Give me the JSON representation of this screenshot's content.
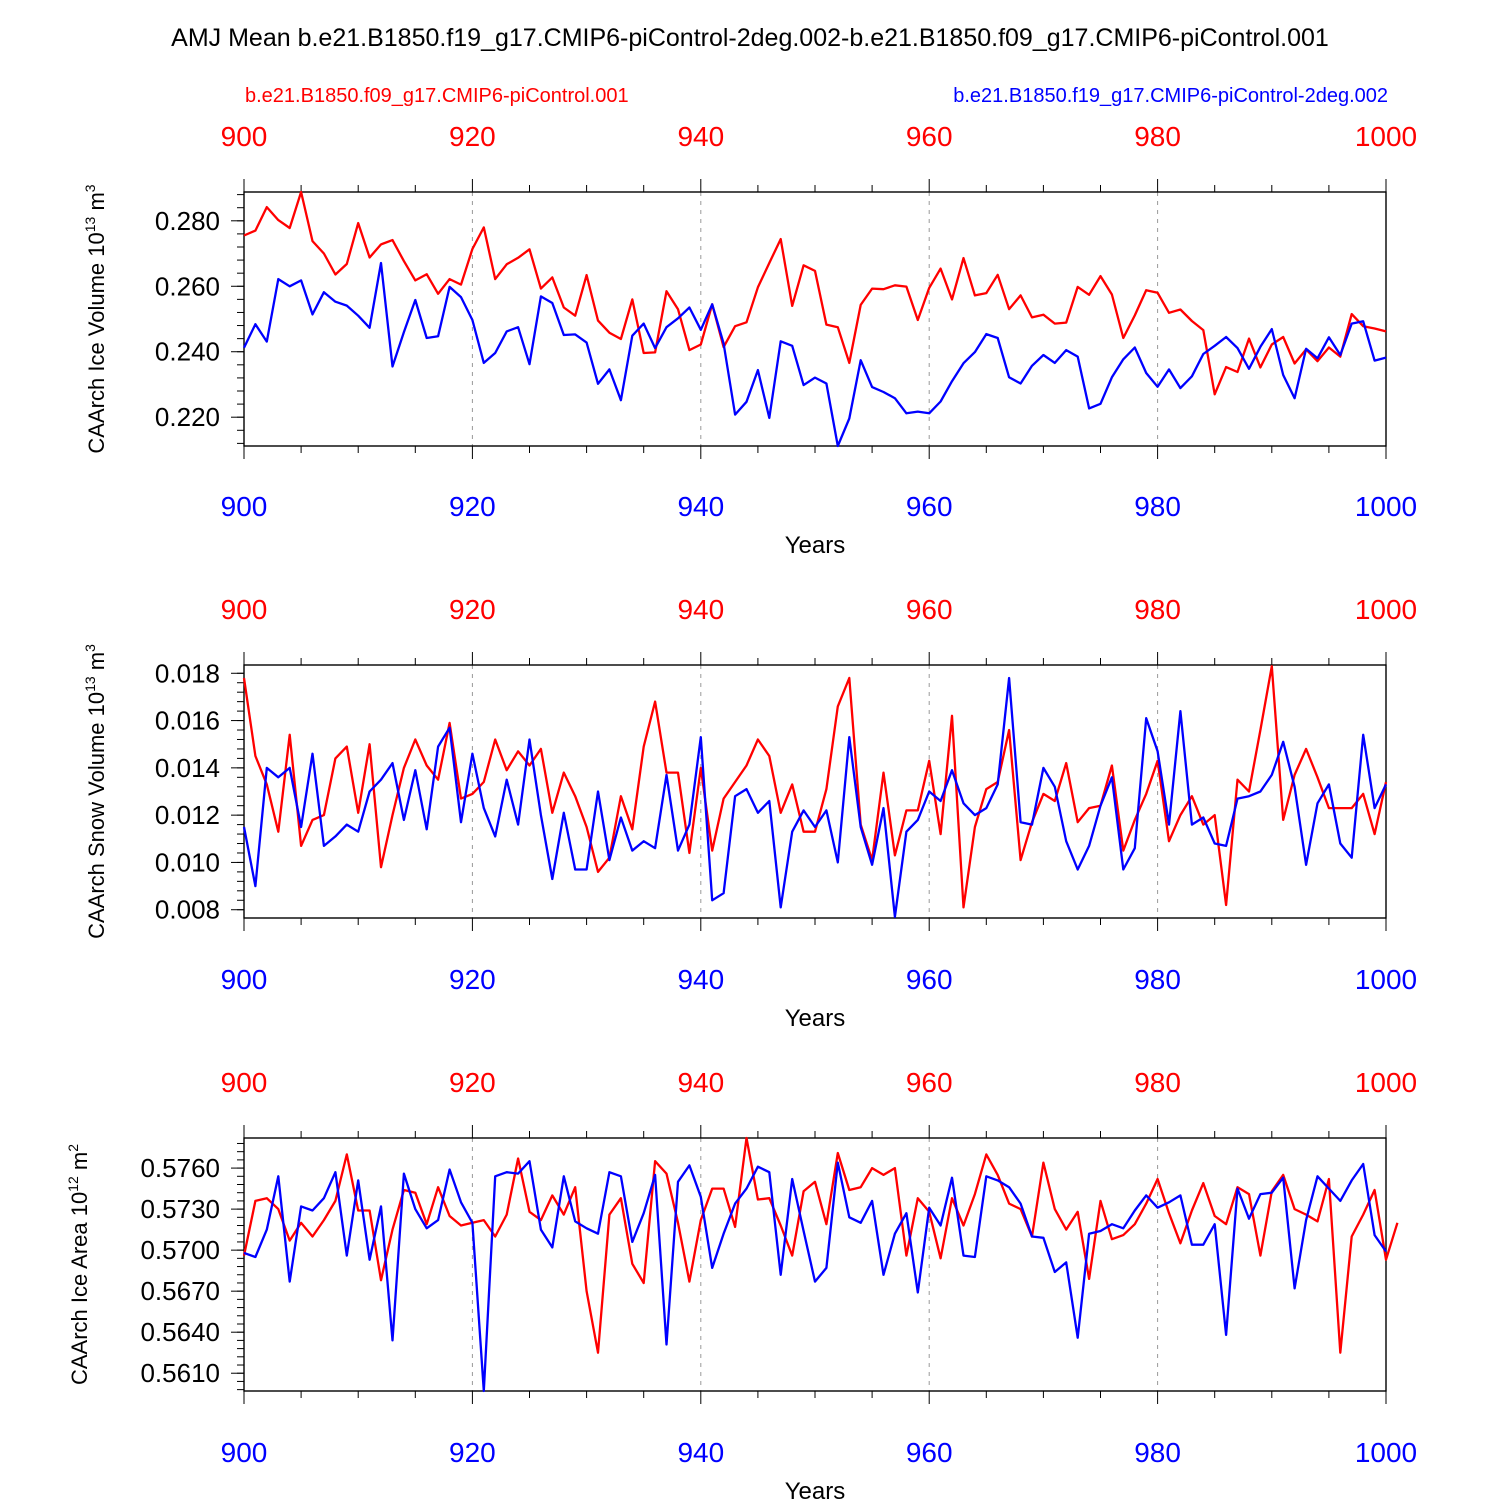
{
  "title": "AMJ Mean b.e21.B1850.f19_g17.CMIP6-piControl-2deg.002-b.e21.B1850.f09_g17.CMIP6-piControl.001",
  "legend": [
    {
      "name": "b.e21.B1850.f09_g17.CMIP6-piControl.001",
      "color": "#ff0000"
    },
    {
      "name": "b.e21.B1850.f19_g17.CMIP6-piControl-2deg.002",
      "color": "#0000ff"
    }
  ],
  "colors": {
    "red": "#ff0000",
    "blue": "#0000ff",
    "axis": "#000000",
    "grid": "#999999"
  },
  "x_tick_labels": [
    "900",
    "920",
    "940",
    "960",
    "980",
    "1000"
  ],
  "chart_data": [
    {
      "type": "line",
      "ylabel_main": "CAArch Ice Volume 10",
      "ylabel_sup": "13",
      "ylabel_unit": " m",
      "ylabel_unit_sup": "3",
      "xlabel": "Years",
      "xlim": [
        900,
        1000
      ],
      "ylim": [
        0.2112,
        0.2888
      ],
      "yticks": [
        0.22,
        0.24,
        0.26,
        0.28
      ],
      "ytick_labels": [
        "0.220",
        "0.240",
        "0.260",
        "0.280"
      ],
      "yminor_step": 0.004,
      "series": [
        {
          "name": "b.e21.B1850.f09_g17.CMIP6-piControl.001",
          "color": "#ff0000",
          "x_start": 900,
          "values": [
            0.2755,
            0.277,
            0.2842,
            0.2802,
            0.2778,
            0.2888,
            0.2738,
            0.27,
            0.2636,
            0.2668,
            0.2793,
            0.2688,
            0.2728,
            0.2741,
            0.2677,
            0.2618,
            0.2637,
            0.2577,
            0.2622,
            0.2605,
            0.2714,
            0.278,
            0.2622,
            0.2667,
            0.2687,
            0.2713,
            0.2593,
            0.2627,
            0.2535,
            0.251,
            0.2634,
            0.2495,
            0.2458,
            0.2439,
            0.256,
            0.2396,
            0.2398,
            0.2585,
            0.253,
            0.2405,
            0.2422,
            0.2545,
            0.2414,
            0.2478,
            0.249,
            0.2597,
            0.2671,
            0.2744,
            0.254,
            0.2664,
            0.2647,
            0.2483,
            0.2475,
            0.2366,
            0.2543,
            0.2593,
            0.2591,
            0.2603,
            0.2599,
            0.2497,
            0.2595,
            0.2654,
            0.256,
            0.2686,
            0.2572,
            0.2579,
            0.2635,
            0.253,
            0.2572,
            0.2505,
            0.2513,
            0.2486,
            0.2489,
            0.2598,
            0.2574,
            0.2631,
            0.2575,
            0.2442,
            0.2511,
            0.2588,
            0.258,
            0.2519,
            0.2529,
            0.2494,
            0.2466,
            0.227,
            0.2353,
            0.2338,
            0.244,
            0.2352,
            0.2422,
            0.2445,
            0.2364,
            0.2407,
            0.2371,
            0.2413,
            0.2385,
            0.2515,
            0.2478,
            0.2471,
            0.2462
          ]
        },
        {
          "name": "b.e21.B1850.f19_g17.CMIP6-piControl-2deg.002",
          "color": "#0000ff",
          "x_start": 900,
          "values": [
            0.2412,
            0.2484,
            0.2431,
            0.2622,
            0.26,
            0.2618,
            0.2514,
            0.2582,
            0.2553,
            0.2541,
            0.251,
            0.2473,
            0.2671,
            0.2355,
            0.246,
            0.2558,
            0.2442,
            0.2447,
            0.2598,
            0.2567,
            0.2497,
            0.2366,
            0.2396,
            0.2462,
            0.2475,
            0.2362,
            0.2569,
            0.2549,
            0.2451,
            0.2453,
            0.2428,
            0.2302,
            0.2346,
            0.2252,
            0.2449,
            0.2486,
            0.2411,
            0.2475,
            0.2502,
            0.2535,
            0.2467,
            0.2545,
            0.2425,
            0.2208,
            0.2247,
            0.2344,
            0.2198,
            0.2432,
            0.2418,
            0.2298,
            0.2321,
            0.2303,
            0.2112,
            0.2196,
            0.2374,
            0.2292,
            0.2277,
            0.2258,
            0.2212,
            0.2217,
            0.2212,
            0.2248,
            0.231,
            0.2365,
            0.2399,
            0.2454,
            0.2442,
            0.2322,
            0.2303,
            0.2357,
            0.239,
            0.2366,
            0.2405,
            0.2385,
            0.2227,
            0.2241,
            0.2322,
            0.2377,
            0.2413,
            0.2335,
            0.2293,
            0.2346,
            0.2289,
            0.2325,
            0.2393,
            0.2418,
            0.2445,
            0.2411,
            0.2348,
            0.2415,
            0.2469,
            0.2329,
            0.2258,
            0.2409,
            0.238,
            0.2444,
            0.239,
            0.2486,
            0.2493,
            0.2373,
            0.2382
          ]
        }
      ]
    },
    {
      "type": "line",
      "ylabel_main": "CAArch Snow Volume 10",
      "ylabel_sup": "13",
      "ylabel_unit": " m",
      "ylabel_unit_sup": "3",
      "xlabel": "Years",
      "xlim": [
        900,
        1000
      ],
      "ylim": [
        0.00765,
        0.01835
      ],
      "yticks": [
        0.008,
        0.01,
        0.012,
        0.014,
        0.016,
        0.018
      ],
      "ytick_labels": [
        "0.008",
        "0.010",
        "0.012",
        "0.014",
        "0.016",
        "0.018"
      ],
      "yminor_step": 0.0004,
      "series": [
        {
          "name": "b.e21.B1850.f09_g17.CMIP6-piControl.001",
          "color": "#ff0000",
          "x_start": 900,
          "values": [
            0.0178,
            0.0145,
            0.0133,
            0.0113,
            0.0154,
            0.0107,
            0.0118,
            0.012,
            0.0144,
            0.0149,
            0.0121,
            0.015,
            0.0098,
            0.012,
            0.014,
            0.0152,
            0.0141,
            0.0135,
            0.0159,
            0.0127,
            0.0129,
            0.0134,
            0.0152,
            0.0139,
            0.0147,
            0.0141,
            0.0148,
            0.0121,
            0.0138,
            0.0128,
            0.0115,
            0.0096,
            0.0102,
            0.0128,
            0.0114,
            0.0149,
            0.0168,
            0.0138,
            0.0138,
            0.0104,
            0.014,
            0.0105,
            0.0127,
            0.0134,
            0.0141,
            0.0152,
            0.0145,
            0.0121,
            0.0133,
            0.0113,
            0.0113,
            0.0131,
            0.0166,
            0.0178,
            0.0116,
            0.0101,
            0.0138,
            0.0103,
            0.0122,
            0.0122,
            0.0143,
            0.0112,
            0.0162,
            0.0081,
            0.0115,
            0.0131,
            0.0134,
            0.0156,
            0.0101,
            0.0117,
            0.0129,
            0.0126,
            0.0142,
            0.0117,
            0.0123,
            0.0124,
            0.0141,
            0.0105,
            0.0118,
            0.0129,
            0.0143,
            0.0109,
            0.012,
            0.0128,
            0.0116,
            0.012,
            0.0082,
            0.0135,
            0.013,
            0.0156,
            0.0183,
            0.0118,
            0.0137,
            0.0148,
            0.0136,
            0.0123,
            0.0123,
            0.0123,
            0.0129,
            0.0112,
            0.0134
          ]
        },
        {
          "name": "b.e21.B1850.f19_g17.CMIP6-piControl-2deg.002",
          "color": "#0000ff",
          "x_start": 900,
          "values": [
            0.0115,
            0.009,
            0.014,
            0.0136,
            0.014,
            0.0115,
            0.0146,
            0.0107,
            0.0111,
            0.0116,
            0.0113,
            0.013,
            0.0135,
            0.0142,
            0.0118,
            0.0139,
            0.0114,
            0.0149,
            0.0157,
            0.0117,
            0.0146,
            0.0123,
            0.0111,
            0.0135,
            0.0116,
            0.0152,
            0.012,
            0.0093,
            0.0121,
            0.0097,
            0.0097,
            0.013,
            0.0101,
            0.0119,
            0.0105,
            0.0109,
            0.0106,
            0.0137,
            0.0105,
            0.0116,
            0.0153,
            0.0084,
            0.0087,
            0.0128,
            0.0131,
            0.0121,
            0.0126,
            0.0081,
            0.0113,
            0.0122,
            0.0115,
            0.0122,
            0.01,
            0.0153,
            0.0115,
            0.0099,
            0.0123,
            0.0077,
            0.0113,
            0.0118,
            0.013,
            0.0126,
            0.0139,
            0.0125,
            0.012,
            0.0123,
            0.0133,
            0.0178,
            0.0117,
            0.0116,
            0.014,
            0.0132,
            0.0109,
            0.0097,
            0.0107,
            0.0124,
            0.0136,
            0.0097,
            0.0106,
            0.0161,
            0.0147,
            0.0116,
            0.0164,
            0.0116,
            0.0119,
            0.0108,
            0.0107,
            0.0127,
            0.0128,
            0.013,
            0.0137,
            0.0151,
            0.0132,
            0.0099,
            0.0125,
            0.0133,
            0.0108,
            0.0102,
            0.0154,
            0.0123,
            0.0133
          ]
        }
      ]
    },
    {
      "type": "line",
      "ylabel_main": "CAArch Ice Area 10",
      "ylabel_sup": "12",
      "ylabel_unit": " m",
      "ylabel_unit_sup": "2",
      "xlabel": "Years",
      "xlim": [
        900,
        1000
      ],
      "ylim": [
        0.5597,
        0.5782
      ],
      "yticks": [
        0.561,
        0.564,
        0.567,
        0.57,
        0.573,
        0.576
      ],
      "ytick_labels": [
        "0.5610",
        "0.5640",
        "0.5670",
        "0.5700",
        "0.5730",
        "0.5760"
      ],
      "yminor_step": 0.0006,
      "series": [
        {
          "name": "b.e21.B1850.f09_g17.CMIP6-piControl.001",
          "color": "#ff0000",
          "x_start": 900,
          "values": [
            0.5696,
            0.5736,
            0.5738,
            0.573,
            0.5707,
            0.572,
            0.571,
            0.5722,
            0.5736,
            0.577,
            0.5729,
            0.5729,
            0.5678,
            0.5715,
            0.5744,
            0.5742,
            0.5719,
            0.5746,
            0.5725,
            0.5718,
            0.572,
            0.5722,
            0.571,
            0.5726,
            0.5767,
            0.5728,
            0.5722,
            0.574,
            0.5726,
            0.5746,
            0.567,
            0.5625,
            0.5726,
            0.5738,
            0.569,
            0.5676,
            0.5765,
            0.5756,
            0.572,
            0.5677,
            0.5722,
            0.5745,
            0.5745,
            0.5717,
            0.5782,
            0.5737,
            0.5738,
            0.5718,
            0.5696,
            0.5743,
            0.575,
            0.5719,
            0.5771,
            0.5744,
            0.5746,
            0.576,
            0.5755,
            0.576,
            0.5696,
            0.5738,
            0.5728,
            0.5694,
            0.5738,
            0.5718,
            0.5741,
            0.577,
            0.5755,
            0.5734,
            0.573,
            0.571,
            0.5764,
            0.573,
            0.5715,
            0.5728,
            0.5679,
            0.5736,
            0.5708,
            0.5711,
            0.5719,
            0.5734,
            0.5752,
            0.5727,
            0.5705,
            0.5729,
            0.5749,
            0.5725,
            0.5719,
            0.5746,
            0.5741,
            0.5696,
            0.5743,
            0.5755,
            0.573,
            0.5726,
            0.5721,
            0.5752,
            0.5625,
            0.571,
            0.5726,
            0.5744,
            0.5693,
            0.572
          ]
        },
        {
          "name": "b.e21.B1850.f19_g17.CMIP6-piControl-2deg.002",
          "color": "#0000ff",
          "x_start": 900,
          "values": [
            0.5698,
            0.5695,
            0.5715,
            0.5754,
            0.5677,
            0.5732,
            0.5729,
            0.5738,
            0.5757,
            0.5696,
            0.5751,
            0.5693,
            0.5732,
            0.5634,
            0.5756,
            0.573,
            0.5716,
            0.5722,
            0.5759,
            0.5735,
            0.572,
            0.5597,
            0.5754,
            0.5757,
            0.5756,
            0.5765,
            0.5715,
            0.5702,
            0.5754,
            0.5721,
            0.5716,
            0.5712,
            0.5757,
            0.5754,
            0.5706,
            0.5727,
            0.5755,
            0.5631,
            0.575,
            0.5762,
            0.5739,
            0.5687,
            0.5712,
            0.5734,
            0.5745,
            0.5761,
            0.5757,
            0.5682,
            0.5752,
            0.5714,
            0.5677,
            0.5687,
            0.5764,
            0.5724,
            0.572,
            0.5736,
            0.5682,
            0.5712,
            0.5727,
            0.5669,
            0.5731,
            0.5718,
            0.5753,
            0.5696,
            0.5695,
            0.5754,
            0.5751,
            0.5746,
            0.5734,
            0.571,
            0.5709,
            0.5684,
            0.5691,
            0.5636,
            0.5712,
            0.5714,
            0.5719,
            0.5716,
            0.5729,
            0.574,
            0.5731,
            0.5735,
            0.574,
            0.5704,
            0.5704,
            0.5719,
            0.5638,
            0.5745,
            0.5723,
            0.5741,
            0.5742,
            0.5753,
            0.5672,
            0.5722,
            0.5754,
            0.5745,
            0.5736,
            0.5751,
            0.5763,
            0.5711,
            0.5699
          ]
        }
      ]
    }
  ]
}
